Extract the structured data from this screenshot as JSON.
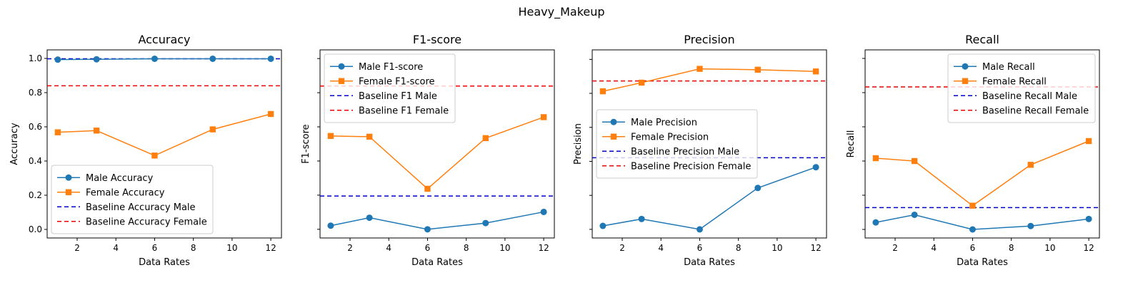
{
  "figure": {
    "suptitle": "Heavy_Makeup"
  },
  "chart_data": [
    {
      "type": "line",
      "title": "Accuracy",
      "xlabel": "Data Rates",
      "ylabel": "Accuracy",
      "x": [
        1,
        3,
        6,
        9,
        12
      ],
      "xlim": [
        0.45,
        12.55
      ],
      "xticks": [
        2,
        4,
        6,
        8,
        10,
        12
      ],
      "ylim": [
        -0.05,
        1.05
      ],
      "yticks": [
        0.0,
        0.2,
        0.4,
        0.6,
        0.8,
        1.0
      ],
      "ytick_labels": [
        "0.0",
        "0.2",
        "0.4",
        "0.6",
        "0.8",
        "1.0"
      ],
      "series": [
        {
          "name": "Male Accuracy",
          "values": [
            0.993,
            0.995,
            0.998,
            0.998,
            0.998
          ],
          "color": "#1f77b4",
          "marker": "circle",
          "style": "solid"
        },
        {
          "name": "Female Accuracy",
          "values": [
            0.568,
            0.578,
            0.432,
            0.585,
            0.675
          ],
          "color": "#ff7f0e",
          "marker": "square",
          "style": "solid"
        }
      ],
      "baselines": [
        {
          "name": "Baseline Accuracy Male",
          "value": 0.998,
          "color": "#0000cc",
          "style": "dashed"
        },
        {
          "name": "Baseline Accuracy Female",
          "value": 0.84,
          "color": "#ee0000",
          "style": "dashed"
        }
      ],
      "legend": "lower-left",
      "grid": false
    },
    {
      "type": "line",
      "title": "F1-score",
      "xlabel": "Data Rates",
      "ylabel": "F1-score",
      "x": [
        1,
        3,
        6,
        9,
        12
      ],
      "xlim": [
        0.45,
        12.55
      ],
      "xticks": [
        2,
        4,
        6,
        8,
        10,
        12
      ],
      "ylim": [
        -0.06,
        1.24
      ],
      "yticks": [
        0.0,
        0.236,
        0.472,
        0.708,
        0.944,
        1.18
      ],
      "ytick_labels": [
        "",
        "",
        "",
        "",
        "",
        ""
      ],
      "series": [
        {
          "name": "Male F1-score",
          "values": [
            0.025,
            0.08,
            0.0,
            0.043,
            0.12
          ],
          "color": "#1f77b4",
          "marker": "circle",
          "style": "solid"
        },
        {
          "name": "Female F1-score",
          "values": [
            0.645,
            0.64,
            0.28,
            0.63,
            0.775
          ],
          "color": "#ff7f0e",
          "marker": "square",
          "style": "solid"
        }
      ],
      "baselines": [
        {
          "name": "Baseline F1 Male",
          "value": 0.23,
          "color": "#0000cc",
          "style": "dashed"
        },
        {
          "name": "Baseline F1 Female",
          "value": 0.99,
          "color": "#ee0000",
          "style": "dashed"
        }
      ],
      "legend": "upper-left",
      "grid": false
    },
    {
      "type": "line",
      "title": "Precision",
      "xlabel": "Data Rates",
      "ylabel": "Precision",
      "x": [
        1,
        3,
        6,
        9,
        12
      ],
      "xlim": [
        0.45,
        12.55
      ],
      "xticks": [
        2,
        4,
        6,
        8,
        10,
        12
      ],
      "ylim": [
        -0.05,
        1.04
      ],
      "yticks": [
        0.0,
        0.197,
        0.394,
        0.591,
        0.788,
        0.985
      ],
      "ytick_labels": [
        "",
        "",
        "",
        "",
        "",
        ""
      ],
      "series": [
        {
          "name": "Male Precision",
          "values": [
            0.02,
            0.06,
            0.0,
            0.24,
            0.36
          ],
          "color": "#1f77b4",
          "marker": "circle",
          "style": "solid"
        },
        {
          "name": "Female Precision",
          "values": [
            0.8,
            0.85,
            0.93,
            0.925,
            0.915
          ],
          "color": "#ff7f0e",
          "marker": "square",
          "style": "solid"
        }
      ],
      "baselines": [
        {
          "name": "Baseline Precision Male",
          "value": 0.415,
          "color": "#0000cc",
          "style": "dashed"
        },
        {
          "name": "Baseline Precision Female",
          "value": 0.86,
          "color": "#ee0000",
          "style": "dashed"
        }
      ],
      "legend": "center-left",
      "grid": false
    },
    {
      "type": "line",
      "title": "Recall",
      "xlabel": "Data Rates",
      "ylabel": "Recall",
      "x": [
        1,
        3,
        6,
        9,
        12
      ],
      "xlim": [
        0.45,
        12.55
      ],
      "xticks": [
        2,
        4,
        6,
        8,
        10,
        12
      ],
      "ylim": [
        -0.045,
        0.945
      ],
      "yticks": [
        0.0,
        0.18,
        0.36,
        0.54,
        0.72,
        0.9
      ],
      "ytick_labels": [
        "",
        "",
        "",
        "",
        "",
        ""
      ],
      "series": [
        {
          "name": "Male Recall",
          "values": [
            0.037,
            0.077,
            0.0,
            0.018,
            0.055
          ],
          "color": "#1f77b4",
          "marker": "circle",
          "style": "solid"
        },
        {
          "name": "Female Recall",
          "values": [
            0.375,
            0.36,
            0.125,
            0.34,
            0.465
          ],
          "color": "#ff7f0e",
          "marker": "square",
          "style": "solid"
        }
      ],
      "baselines": [
        {
          "name": "Baseline Recall Male",
          "value": 0.115,
          "color": "#0000cc",
          "style": "dashed"
        },
        {
          "name": "Baseline Recall Female",
          "value": 0.75,
          "color": "#ee0000",
          "style": "dashed"
        }
      ],
      "legend": "upper-right",
      "grid": false
    }
  ]
}
